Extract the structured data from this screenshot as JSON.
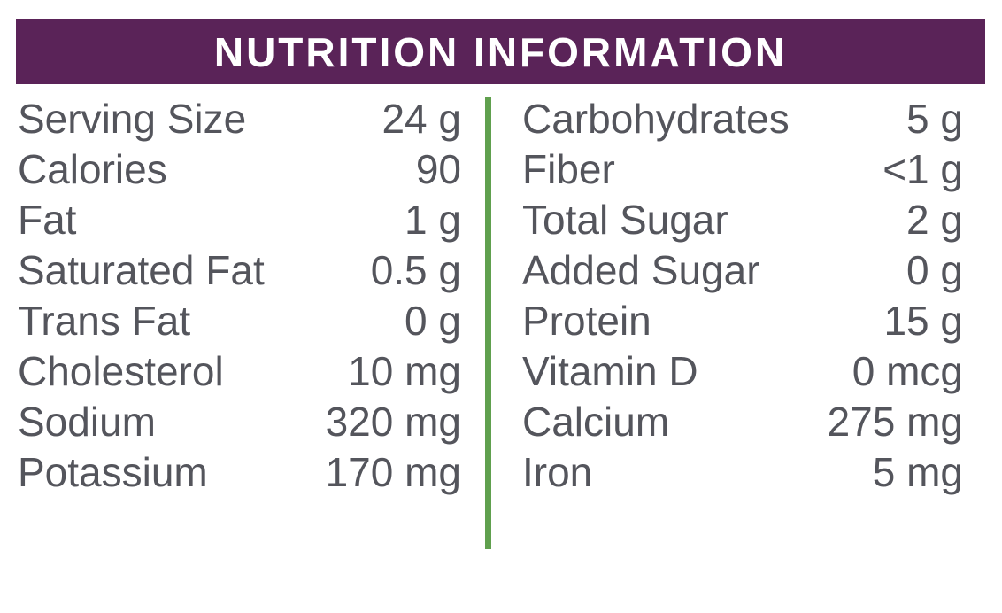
{
  "title": "NUTRITION INFORMATION",
  "colors": {
    "header_bg": "#5a2358",
    "header_text": "#ffffff",
    "divider_green": "#60a04e",
    "body_text": "#54555c",
    "background": "#ffffff"
  },
  "table": {
    "left": [
      {
        "label": "Serving Size",
        "value": "24 g"
      },
      {
        "label": "Calories",
        "value": "90"
      },
      {
        "label": "Fat",
        "value": "1 g"
      },
      {
        "label": "Saturated Fat",
        "value": "0.5 g"
      },
      {
        "label": "Trans Fat",
        "value": "0 g"
      },
      {
        "label": "Cholesterol",
        "value": "10 mg"
      },
      {
        "label": "Sodium",
        "value": "320 mg"
      },
      {
        "label": "Potassium",
        "value": "170 mg"
      }
    ],
    "right": [
      {
        "label": "Carbohydrates",
        "value": "5 g"
      },
      {
        "label": "Fiber",
        "value": "<1 g"
      },
      {
        "label": "Total Sugar",
        "value": "2 g"
      },
      {
        "label": "Added Sugar",
        "value": "0 g"
      },
      {
        "label": "Protein",
        "value": "15 g"
      },
      {
        "label": "Vitamin D",
        "value": "0 mcg"
      },
      {
        "label": "Calcium",
        "value": "275 mg"
      },
      {
        "label": "Iron",
        "value": "5 mg"
      }
    ]
  }
}
